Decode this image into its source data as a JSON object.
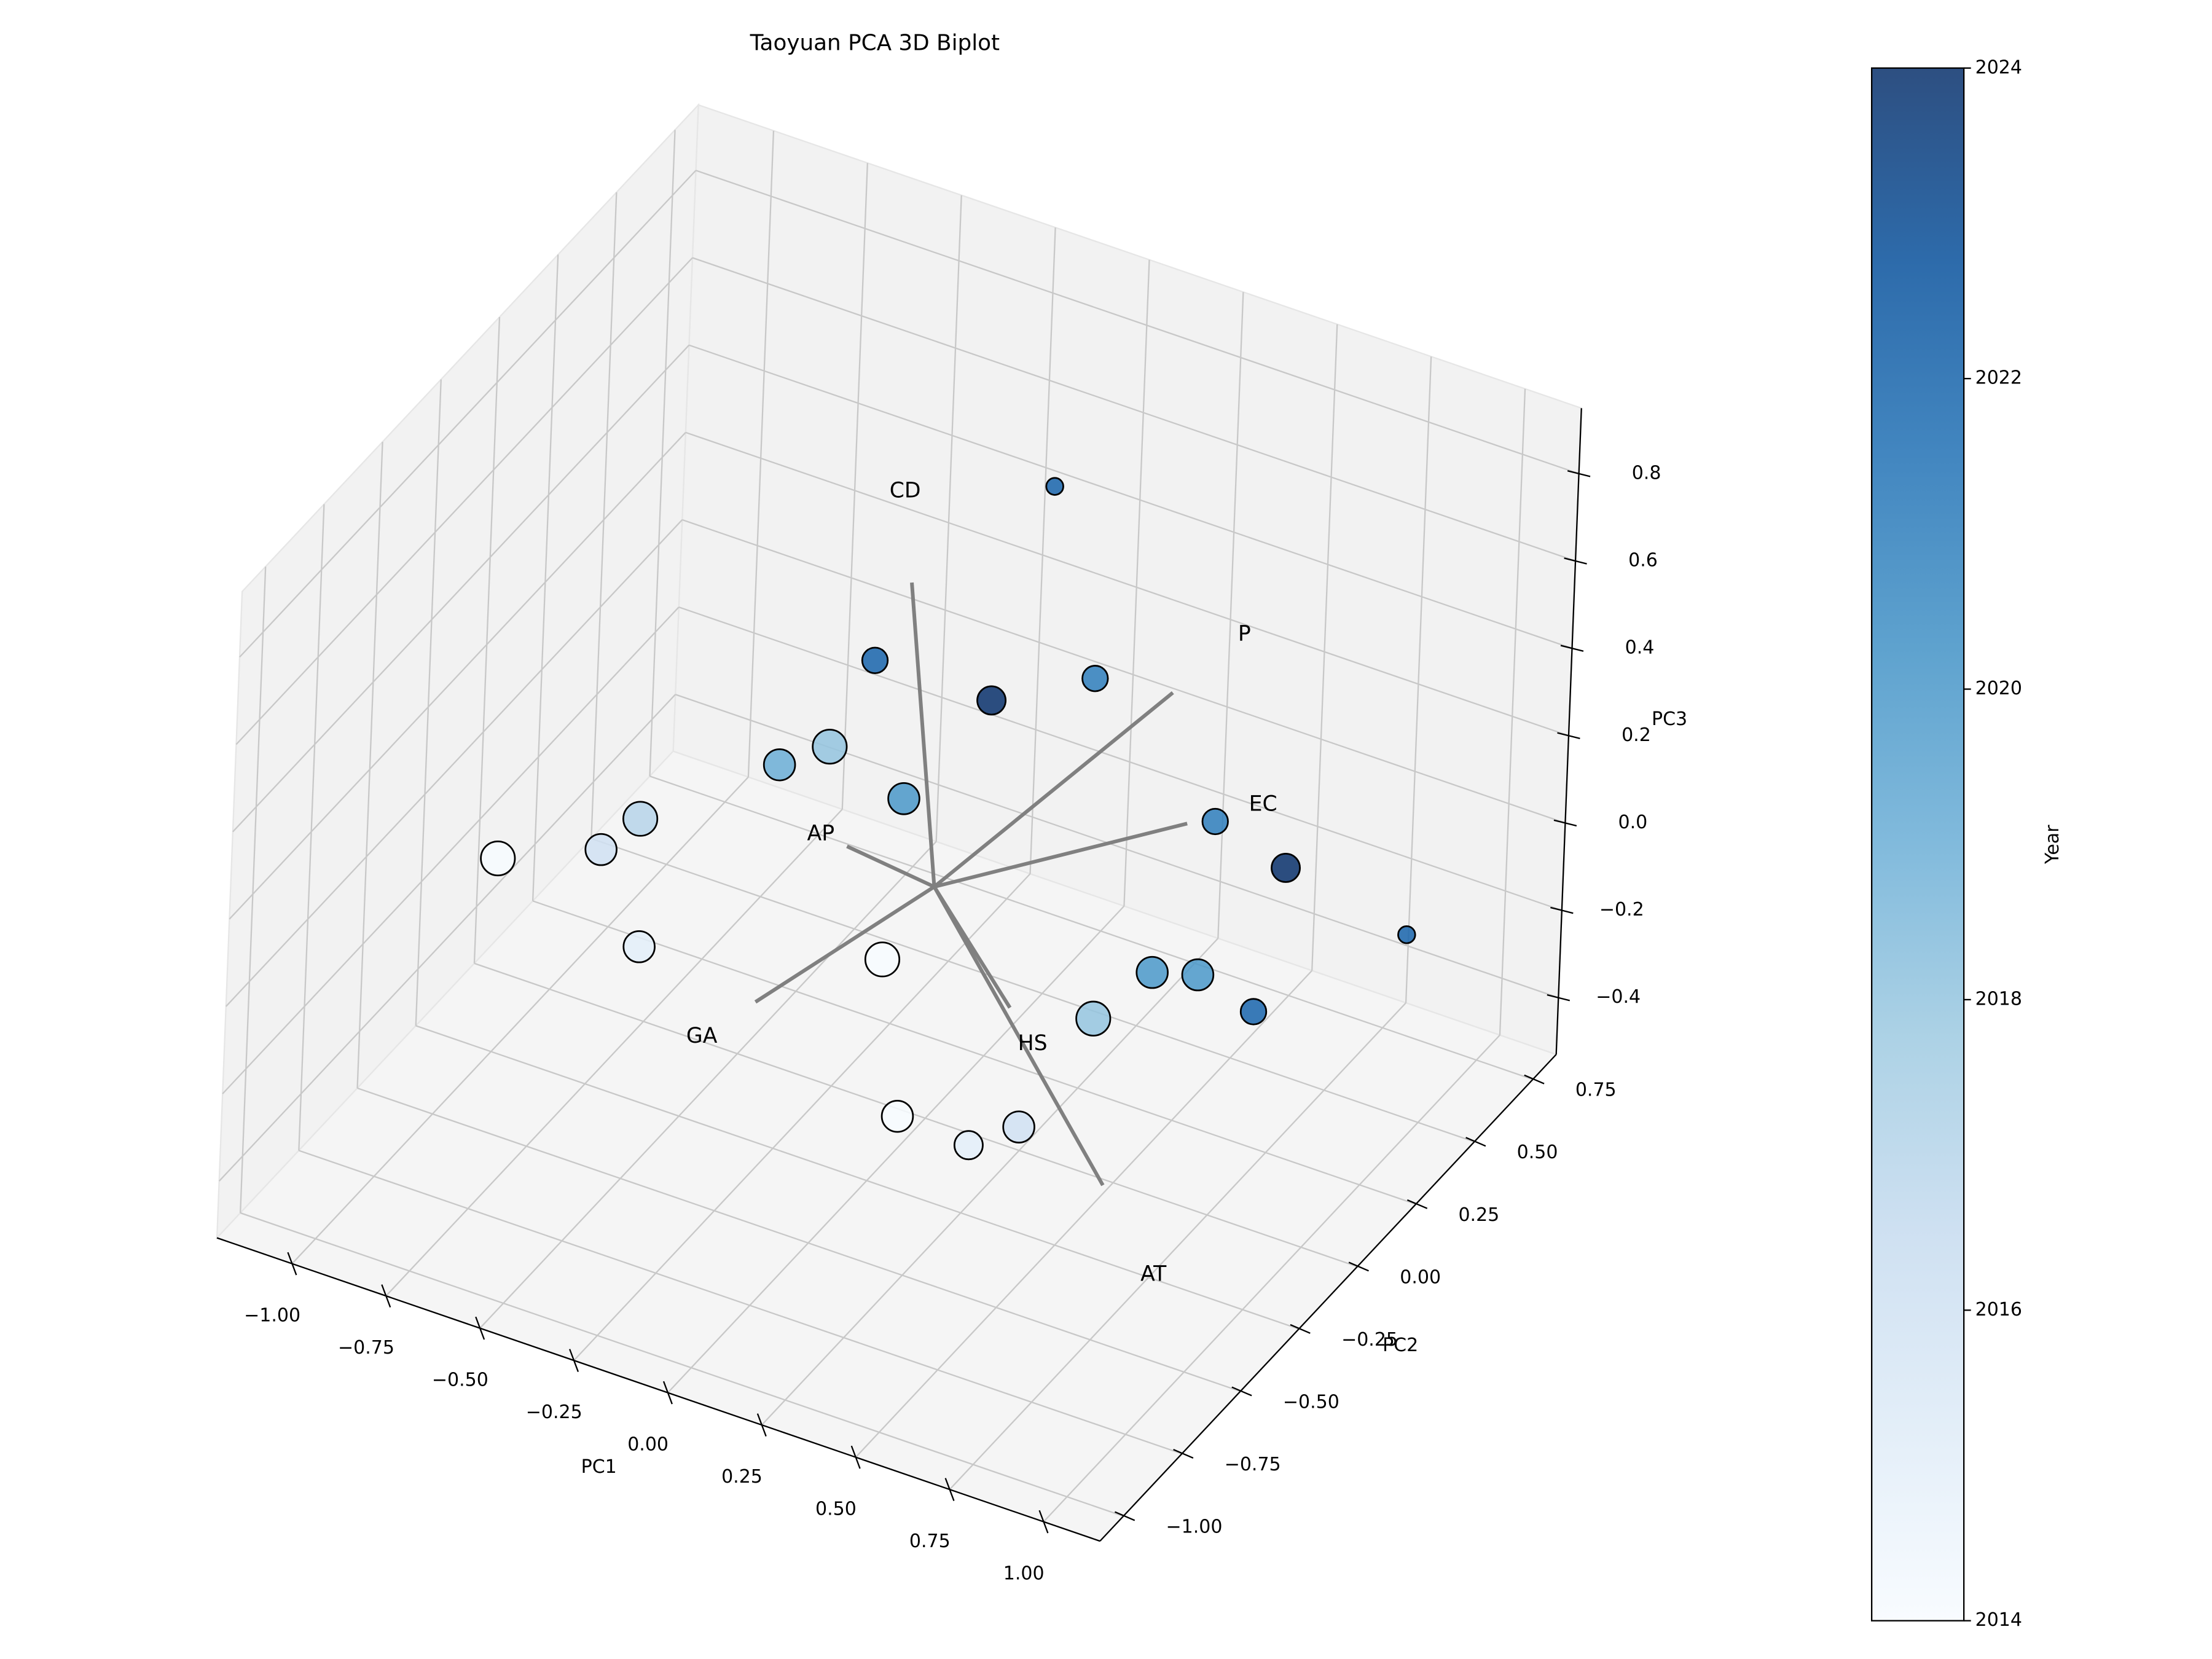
{
  "chart_data": {
    "type": "scatter3d",
    "title": "Taoyuan PCA 3D Biplot",
    "xlabel": "PC1",
    "ylabel": "PC2",
    "zlabel": "PC3",
    "xlim": [
      -1.2,
      1.15
    ],
    "ylim": [
      -1.1,
      0.85
    ],
    "zlim": [
      -0.53,
      0.95
    ],
    "xticks": [
      {
        "value": -1,
        "label": "−1.00"
      },
      {
        "value": -0.75,
        "label": "−0.75"
      },
      {
        "value": -0.5,
        "label": "−0.50"
      },
      {
        "value": -0.25,
        "label": "−0.25"
      },
      {
        "value": 0,
        "label": "0.00"
      },
      {
        "value": 0.25,
        "label": "0.25"
      },
      {
        "value": 0.5,
        "label": "0.50"
      },
      {
        "value": 0.75,
        "label": "0.75"
      },
      {
        "value": 1,
        "label": "1.00"
      }
    ],
    "yticks": [
      {
        "value": -1,
        "label": "−1.00"
      },
      {
        "value": -0.75,
        "label": "−0.75"
      },
      {
        "value": -0.5,
        "label": "−0.50"
      },
      {
        "value": -0.25,
        "label": "−0.25"
      },
      {
        "value": 0,
        "label": "0.00"
      },
      {
        "value": 0.25,
        "label": "0.25"
      },
      {
        "value": 0.5,
        "label": "0.50"
      },
      {
        "value": 0.75,
        "label": "0.75"
      }
    ],
    "zticks": [
      {
        "value": -0.4,
        "label": "−0.4"
      },
      {
        "value": -0.2,
        "label": "−0.2"
      },
      {
        "value": 0,
        "label": "0.0"
      },
      0.2,
      0.4,
      0.6,
      0.8
    ],
    "grid": true,
    "pane_color": "#f2f2f2",
    "grid_color": "#c8c8c8",
    "points": {
      "x": [
        0.04,
        -0.12,
        0.19,
        0.46,
        -0.36,
        -0.23,
        -0.03,
        -0.72,
        -0.82,
        -1.09,
        -0.71,
        -0.07,
        0.79,
        0.98,
        1.01,
        0.64,
        0.76,
        0.91,
        0.49,
        0.28,
        0.47,
        0.6
      ],
      "y": [
        0.4,
        -0.1,
        -0.1,
        -0.1,
        -0.1,
        -0.1,
        -0.1,
        -0.1,
        -0.1,
        -0.1,
        -0.1,
        -0.1,
        -0.1,
        -0.1,
        0.4,
        -0.1,
        -0.1,
        -0.1,
        -0.1,
        -0.6,
        -0.6,
        -0.6
      ],
      "z": [
        0.7,
        0.54,
        0.54,
        0.67,
        0.23,
        0.31,
        0.25,
        0.0,
        -0.1,
        -0.2,
        -0.29,
        -0.13,
        0.44,
        0.39,
        -0.04,
        0.05,
        0.08,
        0.04,
        -0.1,
        -0.1,
        -0.11,
        -0.03
      ],
      "years": [
        2022,
        2022,
        2024,
        2021,
        2019,
        2018,
        2020,
        2017,
        2016,
        2014,
        2015,
        2014,
        2021,
        2024,
        2022,
        2020,
        2020,
        2022,
        2018,
        2014,
        2015,
        2016
      ],
      "sizes": [
        6,
        9,
        10,
        9,
        11,
        12,
        11,
        12,
        11,
        12,
        11,
        12,
        9,
        10,
        6,
        11,
        11,
        9,
        12,
        11,
        10,
        11
      ],
      "edgecolor": "#000000"
    },
    "loadings": {
      "names": [
        "CD",
        "P",
        "EC",
        "AP",
        "GA",
        "AT",
        "HS"
      ],
      "x": [
        -0.09,
        0.43,
        0.54,
        -0.41,
        -0.34,
        0.65,
        0.27
      ],
      "y": [
        0,
        0.3,
        0.2,
        0.3,
        -0.2,
        -0.3,
        -0.1
      ],
      "z": [
        0.67,
        0.4,
        0.19,
        -0.2,
        -0.25,
        -0.32,
        -0.14
      ],
      "color": "#808080"
    },
    "colorbar": {
      "label": "Year",
      "lim": [
        2014,
        2024
      ],
      "ticks": [
        2014,
        2016,
        2018,
        2020,
        2022,
        2024
      ],
      "colors": [
        "#f7fbff",
        "#deebf7",
        "#c6dbef",
        "#9ecae1",
        "#6baed6",
        "#4292c6",
        "#2171b5",
        "#08519c",
        "#08306b"
      ],
      "alpha": 0.85
    }
  }
}
